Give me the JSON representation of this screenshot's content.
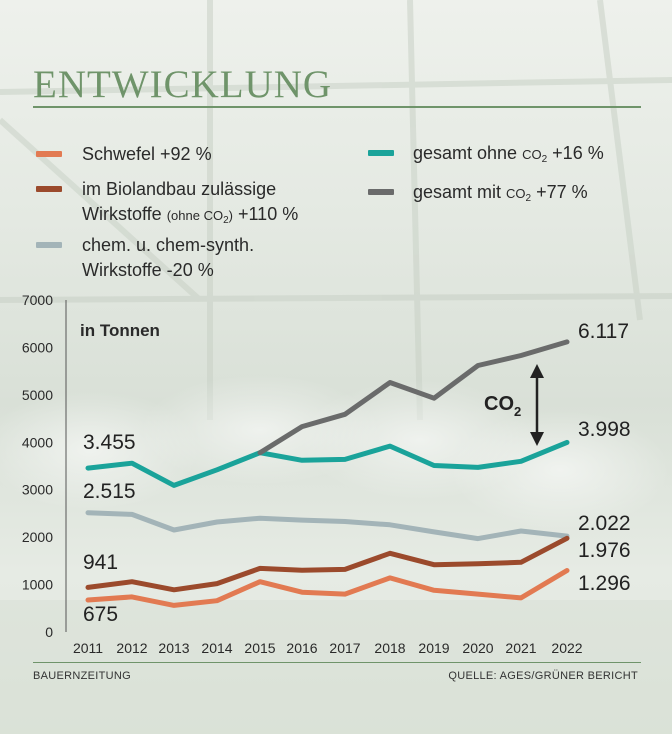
{
  "heading": "ENTWICKLUNG",
  "footer": {
    "left": "BAUERNZEITUNG",
    "right": "QUELLE: AGES/GRÜNER BERICHT"
  },
  "colors": {
    "schwefel": "#e27a52",
    "biolandbau": "#9b4a2c",
    "chem": "#a3b4b8",
    "ohne": "#1aa39a",
    "mit": "#6a6b6b",
    "heading": "#6f946a"
  },
  "legend": {
    "schwefel": {
      "text": "Schwefel +92 %"
    },
    "bio": {
      "line1": "im Biolandbau zulässige",
      "line2a": "Wirkstoffe",
      "small_a": "(ohne CO",
      "small_sub": "2",
      "small_b": ")",
      "line2b": "+110 %"
    },
    "chem": {
      "line1": "chem. u. chem-synth.",
      "line2": "Wirkstoffe -20 %"
    },
    "ohne": {
      "a": "gesamt ohne",
      "co": "CO",
      "sub": "2",
      "b": "+16 %"
    },
    "mit": {
      "a": "gesamt mit",
      "co": "CO",
      "sub": "2",
      "b": "+77 %"
    }
  },
  "chart_data": {
    "type": "line",
    "unit_label": "in Tonnen",
    "x": [
      "2011",
      "2012",
      "2013",
      "2014",
      "2015",
      "2016",
      "2017",
      "2018",
      "2019",
      "2020",
      "2021",
      "2022"
    ],
    "ylim": [
      0,
      7000
    ],
    "yticks": [
      "0",
      "1000",
      "2000",
      "3000",
      "4000",
      "5000",
      "6000",
      "7000"
    ],
    "series": [
      {
        "key": "schwefel",
        "values": [
          675,
          740,
          560,
          660,
          1060,
          840,
          800,
          1140,
          880,
          800,
          720,
          1296
        ]
      },
      {
        "key": "biolandbau",
        "values": [
          941,
          1060,
          890,
          1020,
          1340,
          1300,
          1320,
          1660,
          1420,
          1440,
          1470,
          1976
        ]
      },
      {
        "key": "chem",
        "values": [
          2515,
          2480,
          2150,
          2320,
          2400,
          2360,
          2330,
          2260,
          2110,
          1970,
          2130,
          2022
        ]
      },
      {
        "key": "ohne",
        "values": [
          3455,
          3560,
          3090,
          3420,
          3780,
          3620,
          3640,
          3920,
          3510,
          3470,
          3600,
          3998
        ]
      },
      {
        "key": "mit",
        "values": [
          null,
          null,
          null,
          null,
          3780,
          4330,
          4590,
          5260,
          4930,
          5620,
          5830,
          6117
        ]
      }
    ],
    "annotations": [
      {
        "text": "3.455"
      },
      {
        "text": "2.515"
      },
      {
        "text": "941"
      },
      {
        "text": "675"
      },
      {
        "text": "6.117"
      },
      {
        "text": "3.998"
      },
      {
        "text": "2.022"
      },
      {
        "text": "1.976"
      },
      {
        "text": "1.296"
      }
    ],
    "co2_label": {
      "text": "CO",
      "sub": "2"
    }
  }
}
